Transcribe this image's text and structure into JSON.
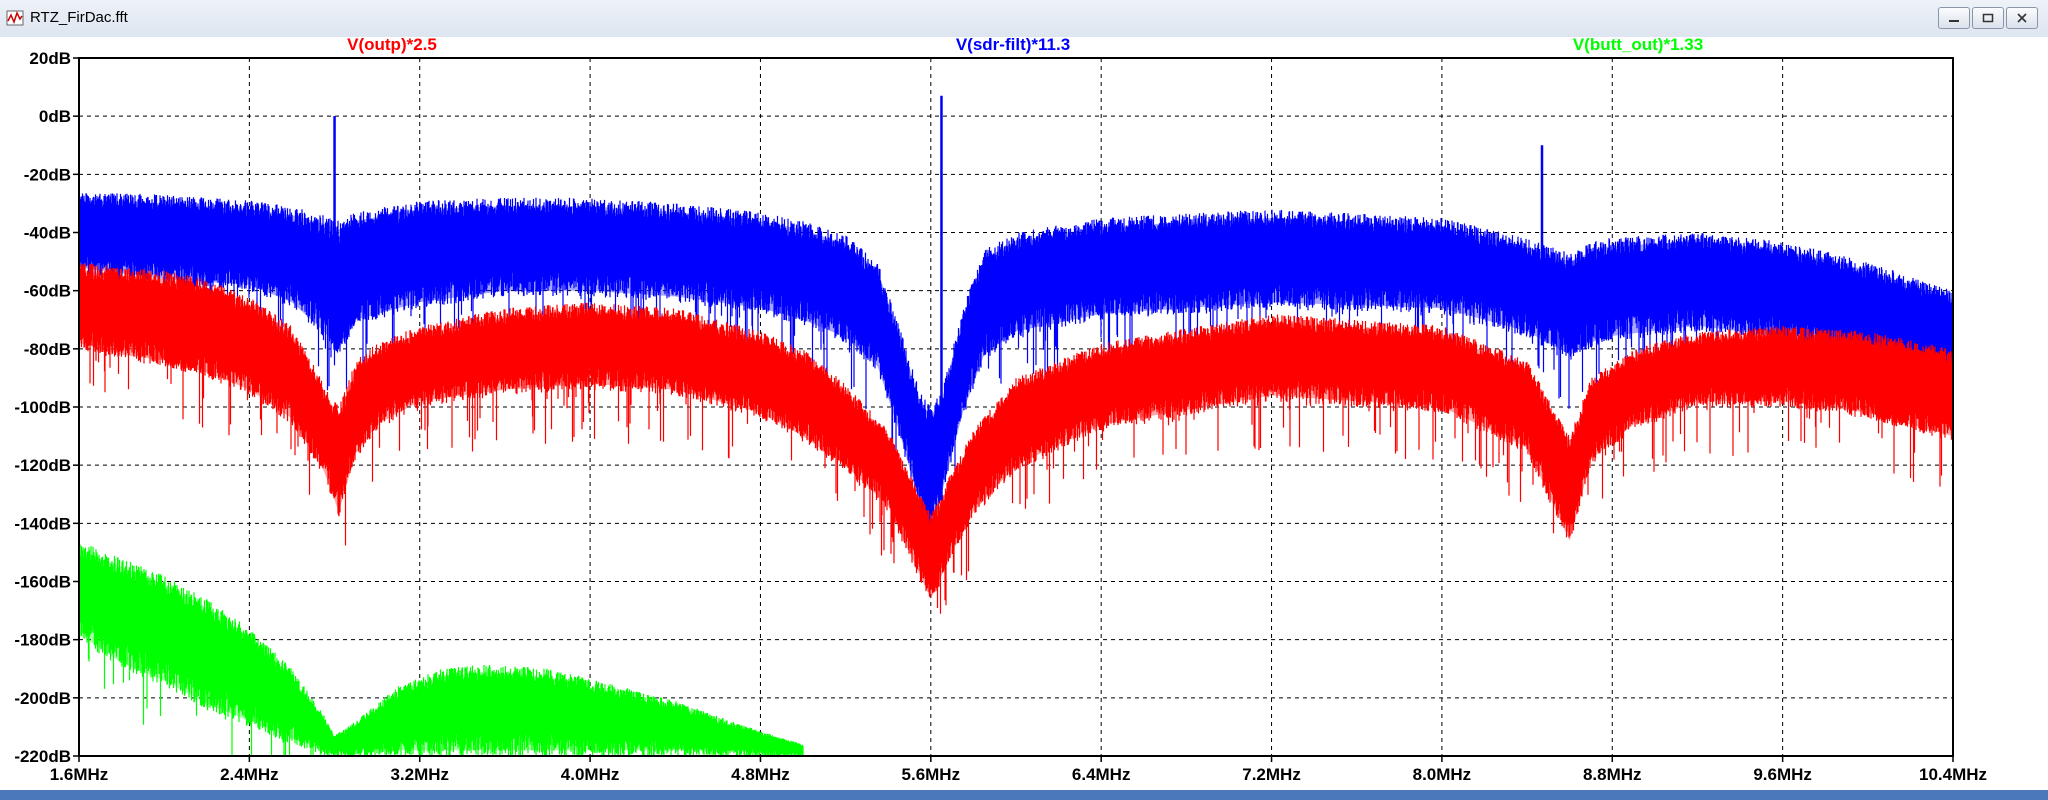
{
  "window": {
    "title": "RTZ_FirDac.fft"
  },
  "icons": {
    "app": "waveform-app-icon",
    "minimize": "minimize-icon",
    "maximize": "maximize-icon",
    "close": "close-icon"
  },
  "chart_data": {
    "type": "line",
    "title": "",
    "xlabel": "",
    "ylabel": "",
    "xlim": [
      1.6,
      10.4
    ],
    "ylim": [
      -220,
      20
    ],
    "grid": true,
    "legend_position": "top",
    "x_ticks": [
      "1.6MHz",
      "2.4MHz",
      "3.2MHz",
      "4.0MHz",
      "4.8MHz",
      "5.6MHz",
      "6.4MHz",
      "7.2MHz",
      "8.0MHz",
      "8.8MHz",
      "9.6MHz",
      "10.4MHz"
    ],
    "y_ticks": [
      "20dB",
      "0dB",
      "-20dB",
      "-40dB",
      "-60dB",
      "-80dB",
      "-100dB",
      "-120dB",
      "-140dB",
      "-160dB",
      "-180dB",
      "-200dB",
      "-220dB"
    ],
    "series": [
      {
        "name": "V(outp)*2.5",
        "color": "#ff0000",
        "x": [
          1.6,
          1.8,
          2.0,
          2.2,
          2.4,
          2.6,
          2.75,
          2.82,
          2.9,
          3.0,
          3.2,
          3.6,
          4.0,
          4.4,
          4.8,
          5.0,
          5.2,
          5.4,
          5.5,
          5.6,
          5.7,
          5.8,
          6.0,
          6.4,
          7.2,
          8.0,
          8.4,
          8.6,
          8.7,
          8.9,
          9.2,
          9.6,
          10.0,
          10.4
        ],
        "top": [
          -50,
          -52,
          -53,
          -56,
          -62,
          -72,
          -92,
          -100,
          -84,
          -78,
          -72,
          -66,
          -64,
          -66,
          -74,
          -80,
          -92,
          -108,
          -122,
          -137,
          -122,
          -108,
          -90,
          -78,
          -68,
          -72,
          -84,
          -110,
          -90,
          -80,
          -74,
          -72,
          -74,
          -80
        ],
        "bottom": [
          -80,
          -84,
          -86,
          -90,
          -96,
          -106,
          -124,
          -138,
          -118,
          -108,
          -100,
          -96,
          -94,
          -96,
          -104,
          -112,
          -122,
          -136,
          -152,
          -168,
          -152,
          -138,
          -122,
          -108,
          -98,
          -102,
          -116,
          -148,
          -120,
          -108,
          -100,
          -100,
          -104,
          -112
        ]
      },
      {
        "name": "V(sdr-filt)*11.3",
        "color": "#0000ff",
        "x": [
          1.6,
          2.0,
          2.4,
          2.6,
          2.75,
          2.82,
          2.9,
          3.2,
          3.6,
          4.0,
          4.4,
          4.8,
          5.0,
          5.2,
          5.35,
          5.45,
          5.55,
          5.6,
          5.65,
          5.75,
          5.85,
          6.0,
          6.4,
          7.2,
          8.0,
          8.4,
          8.6,
          8.75,
          9.2,
          9.6,
          10.0,
          10.4
        ],
        "top": [
          -26,
          -27,
          -29,
          -31,
          -34,
          -36,
          -33,
          -29,
          -28,
          -28,
          -30,
          -33,
          -36,
          -41,
          -50,
          -72,
          -95,
          -100,
          -95,
          -66,
          -46,
          -40,
          -35,
          -32,
          -35,
          -42,
          -47,
          -42,
          -40,
          -43,
          -50,
          -60
        ],
        "bottom": [
          -54,
          -58,
          -60,
          -66,
          -76,
          -82,
          -72,
          -66,
          -62,
          -62,
          -64,
          -68,
          -72,
          -78,
          -88,
          -110,
          -136,
          -146,
          -132,
          -104,
          -84,
          -76,
          -70,
          -66,
          -68,
          -76,
          -84,
          -78,
          -74,
          -78,
          -84,
          -92
        ]
      },
      {
        "name": "V(butt_out)*1.33",
        "color": "#00ff00",
        "x": [
          1.6,
          1.8,
          2.0,
          2.2,
          2.4,
          2.6,
          2.75,
          2.8,
          2.9,
          3.1,
          3.3,
          3.5,
          3.8,
          4.1,
          4.4,
          4.7,
          5.0
        ],
        "top": [
          -146,
          -152,
          -158,
          -166,
          -176,
          -190,
          -206,
          -213,
          -208,
          -196,
          -190,
          -188,
          -190,
          -195,
          -201,
          -209,
          -216
        ],
        "bottom": [
          -180,
          -190,
          -196,
          -204,
          -210,
          -216,
          -220,
          -220,
          -220,
          -220,
          -220,
          -220,
          -220,
          -220,
          -220,
          -220,
          -220
        ]
      }
    ],
    "spurs": [
      {
        "series": "V(sdr-filt)*11.3",
        "x": 2.8,
        "peak": 0
      },
      {
        "series": "V(sdr-filt)*11.3",
        "x": 5.65,
        "peak": 7
      },
      {
        "series": "V(sdr-filt)*11.3",
        "x": 8.47,
        "peak": -10
      }
    ]
  }
}
